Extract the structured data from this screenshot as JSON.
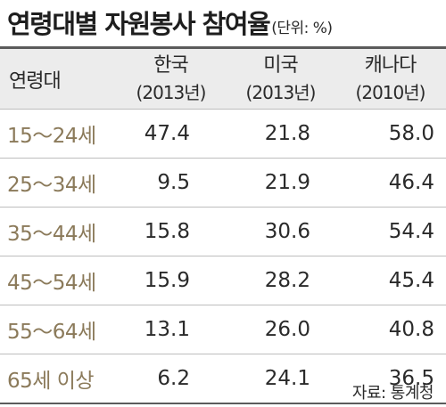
{
  "title": "연령대별 자원봉사 참여율",
  "unit": "(단위: %)",
  "header": {
    "label": "연령대",
    "columns": [
      {
        "country": "한국",
        "year": "(2013년)"
      },
      {
        "country": "미국",
        "year": "(2013년)"
      },
      {
        "country": "캐나다",
        "year": "(2010년)"
      }
    ]
  },
  "rows": [
    {
      "age": "15～24세",
      "values": [
        "47.4",
        "21.8",
        "58.0"
      ]
    },
    {
      "age": "25～34세",
      "values": [
        "9.5",
        "21.9",
        "46.4"
      ]
    },
    {
      "age": "35～44세",
      "values": [
        "15.8",
        "30.6",
        "54.4"
      ]
    },
    {
      "age": "45～54세",
      "values": [
        "15.9",
        "28.2",
        "45.4"
      ]
    },
    {
      "age": "55～64세",
      "values": [
        "13.1",
        "26.0",
        "40.8"
      ]
    },
    {
      "age": "65세 이상",
      "values": [
        "6.2",
        "24.1",
        "36.5"
      ]
    }
  ],
  "source": "자료: 통계청",
  "colors": {
    "age_label": "#8b7a5a",
    "header_bg": "#ececec",
    "rule": "#5b5b5b"
  }
}
